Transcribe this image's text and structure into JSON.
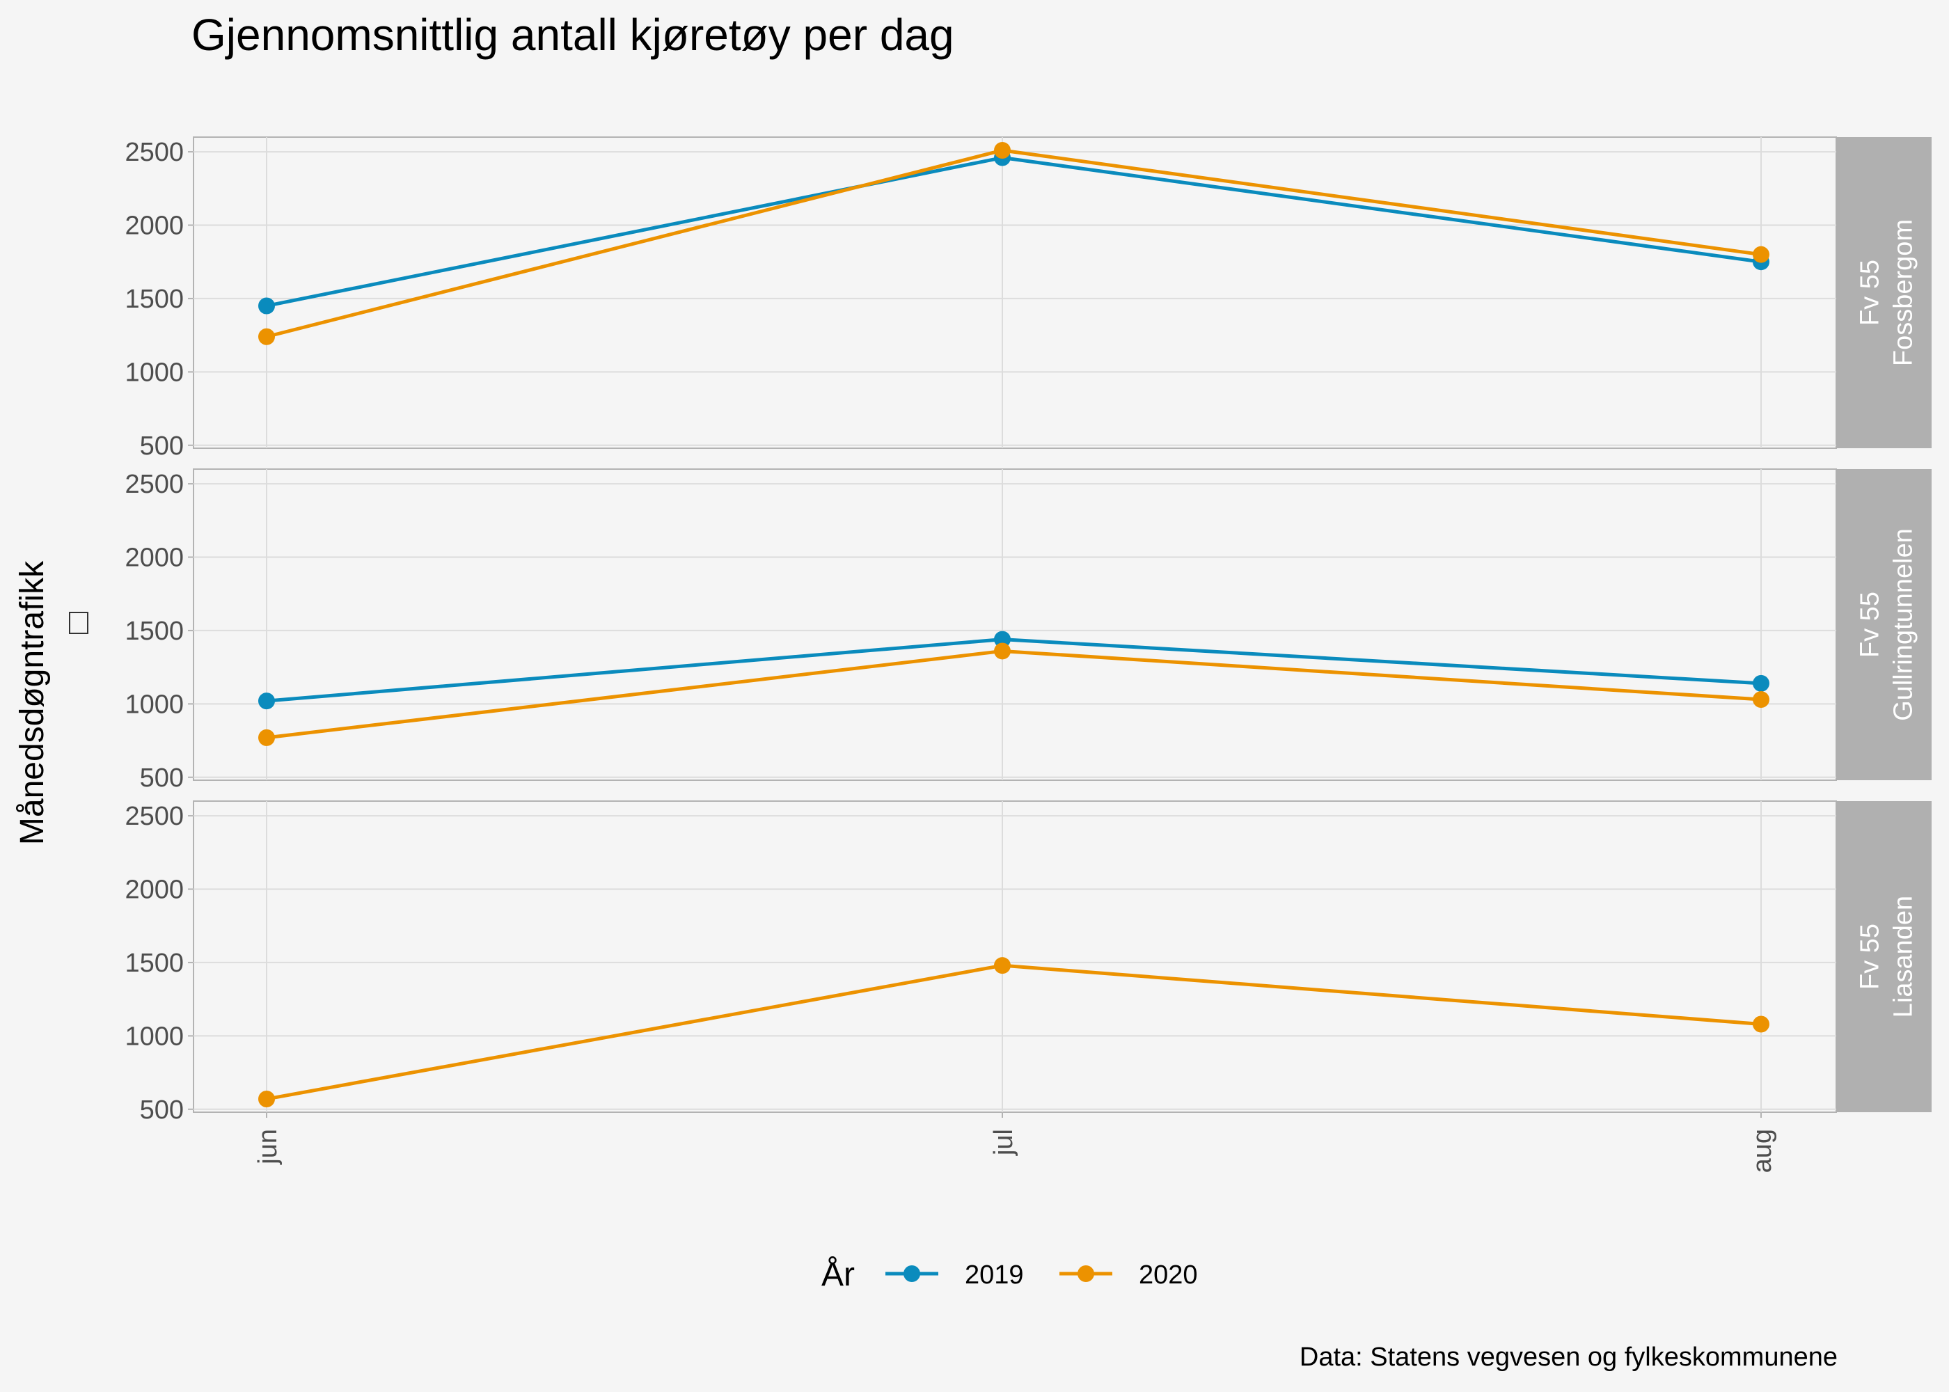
{
  "chart_data": {
    "type": "line",
    "title": "Gjennomsnittlig antall kjøretøy per dag",
    "ylabel": "Månedsdøgntrafikk",
    "xlabel": "",
    "categories": [
      "jun",
      "jul",
      "aug"
    ],
    "yticks": [
      500,
      1000,
      1500,
      2000,
      2500
    ],
    "ylim": [
      480,
      2600
    ],
    "grid": true,
    "legend": {
      "title": "År",
      "position": "bottom"
    },
    "caption": "Data: Statens vegvesen og fylkeskommunene",
    "panels": [
      {
        "strip": [
          "Fv 55",
          "Fossbergom"
        ],
        "series": [
          {
            "name": "2019",
            "values": [
              1450,
              2460,
              1750
            ]
          },
          {
            "name": "2020",
            "values": [
              1240,
              2510,
              1800
            ]
          }
        ]
      },
      {
        "strip": [
          "Fv 55",
          "Gullringtunnelen"
        ],
        "series": [
          {
            "name": "2019",
            "values": [
              1020,
              1440,
              1140
            ]
          },
          {
            "name": "2020",
            "values": [
              770,
              1360,
              1030
            ]
          }
        ]
      },
      {
        "strip": [
          "Fv 55",
          "Liasanden"
        ],
        "series": [
          {
            "name": "2019",
            "values": [
              null,
              null,
              null
            ]
          },
          {
            "name": "2020",
            "values": [
              570,
              1480,
              1080
            ]
          }
        ]
      }
    ],
    "colors": {
      "2019": "#0a8bbd",
      "2020": "#ec9200"
    }
  }
}
